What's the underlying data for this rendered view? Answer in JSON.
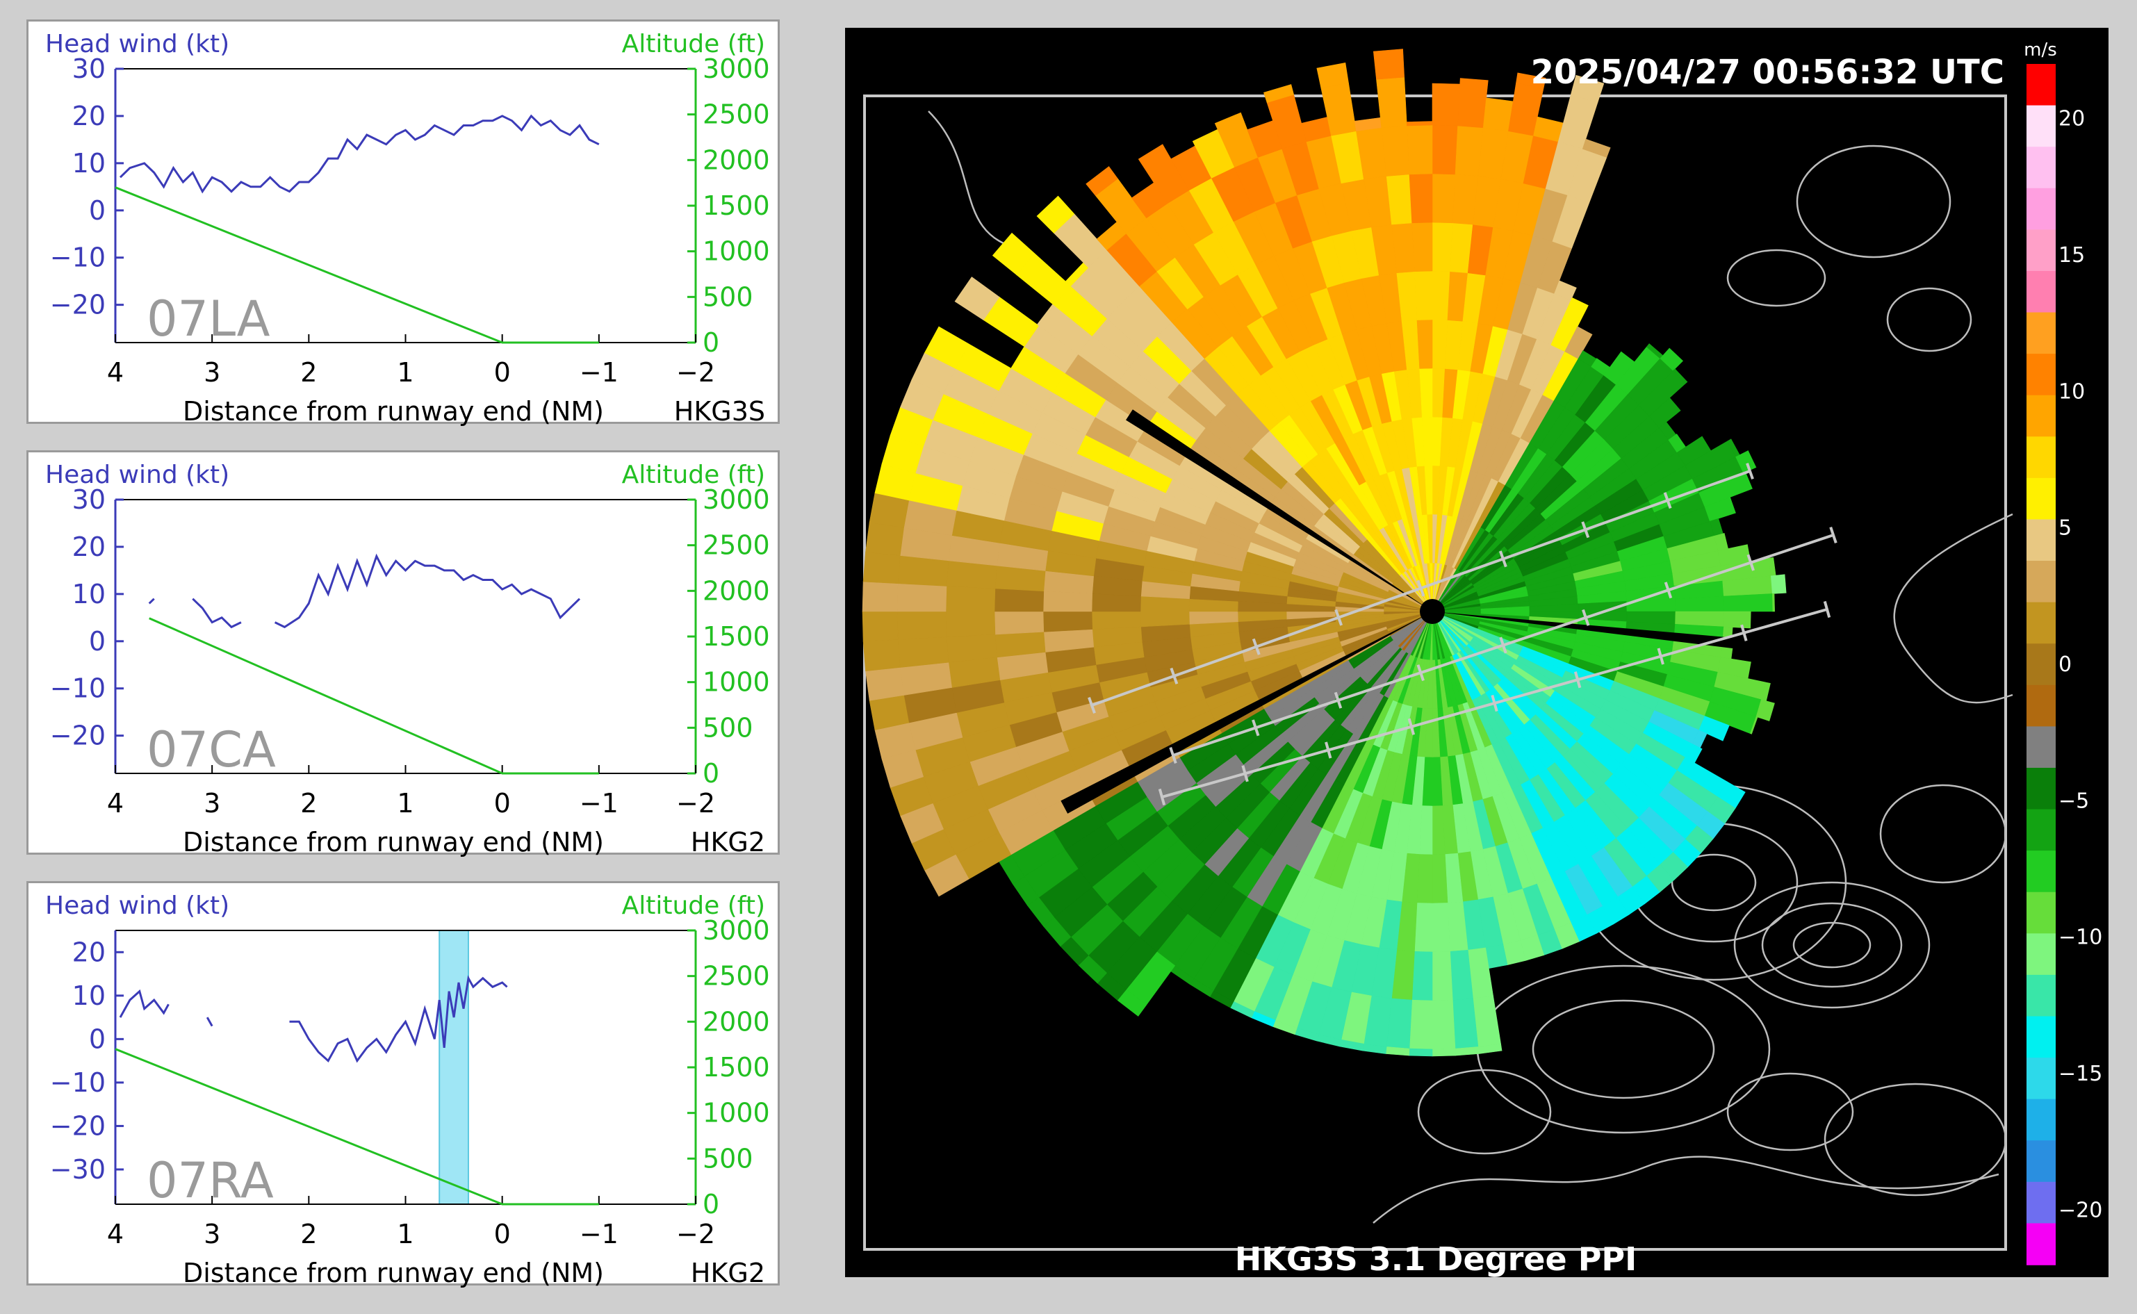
{
  "colors": {
    "headwind": "#3b3bb8",
    "altitude": "#22c022",
    "runway_label": "#9a9a9a",
    "wind_shear_highlight": "#9fe6f5"
  },
  "chart_data": [
    {
      "type": "line",
      "id": "07LA",
      "runway_label": "07LA",
      "radar": "HKG3S",
      "left_axis_label": "Head wind (kt)",
      "right_axis_label": "Altitude (ft)",
      "xlabel": "Distance from runway end (NM)",
      "xlim": [
        4,
        -2
      ],
      "ylim_left": [
        -28,
        30
      ],
      "ylim_right": [
        0,
        3000
      ],
      "xticks": [
        4,
        3,
        2,
        1,
        0,
        -1,
        -2
      ],
      "xtick_labels": [
        "4",
        "3",
        "2",
        "1",
        "0",
        "−1",
        "−2"
      ],
      "yticks_left": [
        30,
        20,
        10,
        0,
        -10,
        -20
      ],
      "ytick_labels_left": [
        "30",
        "20",
        "10",
        "0",
        "−10",
        "−20"
      ],
      "yticks_right": [
        3000,
        2500,
        2000,
        1500,
        1000,
        500,
        0
      ],
      "ytick_labels_right": [
        "3000",
        "2500",
        "2000",
        "1500",
        "1000",
        "500",
        "0"
      ],
      "series": [
        {
          "axis": "left",
          "segments": [
            [
              [
                3.95,
                7
              ],
              [
                3.85,
                9
              ],
              [
                3.7,
                10
              ],
              [
                3.6,
                8
              ],
              [
                3.5,
                5
              ],
              [
                3.4,
                9
              ],
              [
                3.3,
                6
              ],
              [
                3.2,
                8
              ],
              [
                3.1,
                4
              ],
              [
                3.0,
                7
              ],
              [
                2.9,
                6
              ],
              [
                2.8,
                4
              ],
              [
                2.7,
                6
              ],
              [
                2.6,
                5
              ],
              [
                2.5,
                5
              ],
              [
                2.4,
                7
              ],
              [
                2.3,
                5
              ],
              [
                2.2,
                4
              ],
              [
                2.1,
                6
              ],
              [
                2.0,
                6
              ],
              [
                1.9,
                8
              ],
              [
                1.8,
                11
              ],
              [
                1.7,
                11
              ],
              [
                1.6,
                15
              ],
              [
                1.5,
                13
              ],
              [
                1.4,
                16
              ],
              [
                1.3,
                15
              ],
              [
                1.2,
                14
              ],
              [
                1.1,
                16
              ],
              [
                1.0,
                17
              ],
              [
                0.9,
                15
              ],
              [
                0.8,
                16
              ],
              [
                0.7,
                18
              ],
              [
                0.6,
                17
              ],
              [
                0.5,
                16
              ],
              [
                0.4,
                18
              ],
              [
                0.3,
                18
              ],
              [
                0.2,
                19
              ],
              [
                0.1,
                19
              ],
              [
                0.0,
                20
              ],
              [
                -0.1,
                19
              ],
              [
                -0.2,
                17
              ],
              [
                -0.3,
                20
              ],
              [
                -0.4,
                18
              ],
              [
                -0.5,
                19
              ],
              [
                -0.6,
                17
              ],
              [
                -0.7,
                16
              ],
              [
                -0.8,
                18
              ],
              [
                -0.9,
                15
              ],
              [
                -1.0,
                14
              ]
            ]
          ]
        },
        {
          "axis": "right",
          "segments": [
            [
              [
                4.0,
                1700
              ],
              [
                0.0,
                0
              ],
              [
                -1.0,
                0
              ]
            ]
          ]
        }
      ]
    },
    {
      "type": "line",
      "id": "07CA",
      "runway_label": "07CA",
      "radar": "HKG2",
      "left_axis_label": "Head wind (kt)",
      "right_axis_label": "Altitude (ft)",
      "xlabel": "Distance from runway end (NM)",
      "xlim": [
        4,
        -2
      ],
      "ylim_left": [
        -28,
        30
      ],
      "ylim_right": [
        0,
        3000
      ],
      "xticks": [
        4,
        3,
        2,
        1,
        0,
        -1,
        -2
      ],
      "xtick_labels": [
        "4",
        "3",
        "2",
        "1",
        "0",
        "−1",
        "−2"
      ],
      "yticks_left": [
        30,
        20,
        10,
        0,
        -10,
        -20
      ],
      "ytick_labels_left": [
        "30",
        "20",
        "10",
        "0",
        "−10",
        "−20"
      ],
      "yticks_right": [
        3000,
        2500,
        2000,
        1500,
        1000,
        500,
        0
      ],
      "ytick_labels_right": [
        "3000",
        "2500",
        "2000",
        "1500",
        "1000",
        "500",
        "0"
      ],
      "series": [
        {
          "axis": "left",
          "segments": [
            [
              [
                3.65,
                8
              ],
              [
                3.6,
                9
              ]
            ],
            [
              [
                3.2,
                9
              ],
              [
                3.1,
                7
              ],
              [
                3.0,
                4
              ],
              [
                2.9,
                5
              ],
              [
                2.8,
                3
              ],
              [
                2.7,
                4
              ]
            ],
            [
              [
                2.35,
                4
              ],
              [
                2.25,
                3
              ],
              [
                2.1,
                5
              ],
              [
                2.0,
                8
              ],
              [
                1.9,
                14
              ],
              [
                1.8,
                10
              ],
              [
                1.7,
                16
              ],
              [
                1.6,
                11
              ],
              [
                1.5,
                17
              ],
              [
                1.4,
                12
              ],
              [
                1.3,
                18
              ],
              [
                1.2,
                14
              ],
              [
                1.1,
                17
              ],
              [
                1.0,
                15
              ],
              [
                0.9,
                17
              ],
              [
                0.8,
                16
              ],
              [
                0.7,
                16
              ],
              [
                0.6,
                15
              ],
              [
                0.5,
                15
              ],
              [
                0.4,
                13
              ],
              [
                0.3,
                14
              ],
              [
                0.2,
                13
              ],
              [
                0.1,
                13
              ],
              [
                0.0,
                11
              ],
              [
                -0.1,
                12
              ],
              [
                -0.2,
                10
              ],
              [
                -0.3,
                11
              ],
              [
                -0.4,
                10
              ],
              [
                -0.5,
                9
              ],
              [
                -0.6,
                5
              ],
              [
                -0.7,
                7
              ],
              [
                -0.8,
                9
              ]
            ]
          ]
        },
        {
          "axis": "right",
          "segments": [
            [
              [
                3.65,
                1700
              ],
              [
                0.0,
                0
              ],
              [
                -1.0,
                0
              ]
            ]
          ]
        }
      ]
    },
    {
      "type": "line",
      "id": "07RA",
      "runway_label": "07RA",
      "radar": "HKG2",
      "left_axis_label": "Head wind (kt)",
      "right_axis_label": "Altitude (ft)",
      "xlabel": "Distance from runway end (NM)",
      "xlim": [
        4,
        -2
      ],
      "ylim_left": [
        -38,
        25
      ],
      "ylim_right": [
        0,
        3000
      ],
      "xticks": [
        4,
        3,
        2,
        1,
        0,
        -1,
        -2
      ],
      "xtick_labels": [
        "4",
        "3",
        "2",
        "1",
        "0",
        "−1",
        "−2"
      ],
      "yticks_left": [
        20,
        10,
        0,
        -10,
        -20,
        -30
      ],
      "ytick_labels_left": [
        "20",
        "10",
        "0",
        "−10",
        "−20",
        "−30"
      ],
      "yticks_right": [
        3000,
        2500,
        2000,
        1500,
        1000,
        500,
        0
      ],
      "ytick_labels_right": [
        "3000",
        "2500",
        "2000",
        "1500",
        "1000",
        "500",
        "0"
      ],
      "highlight_x": [
        0.65,
        0.35
      ],
      "series": [
        {
          "axis": "left",
          "segments": [
            [
              [
                3.95,
                5
              ],
              [
                3.85,
                9
              ],
              [
                3.75,
                11
              ],
              [
                3.7,
                7
              ],
              [
                3.6,
                9
              ],
              [
                3.5,
                6
              ],
              [
                3.45,
                8
              ]
            ],
            [
              [
                3.05,
                5
              ],
              [
                3.0,
                3
              ]
            ],
            [
              [
                2.2,
                4
              ],
              [
                2.1,
                4
              ],
              [
                2.0,
                0
              ],
              [
                1.9,
                -3
              ],
              [
                1.8,
                -5
              ],
              [
                1.7,
                -1
              ],
              [
                1.6,
                0
              ],
              [
                1.5,
                -5
              ],
              [
                1.4,
                -2
              ],
              [
                1.3,
                0
              ],
              [
                1.2,
                -3
              ],
              [
                1.1,
                1
              ],
              [
                1.0,
                4
              ],
              [
                0.9,
                -1
              ],
              [
                0.8,
                7
              ],
              [
                0.7,
                0
              ],
              [
                0.65,
                9
              ],
              [
                0.6,
                -2
              ],
              [
                0.55,
                11
              ],
              [
                0.5,
                5
              ],
              [
                0.45,
                13
              ],
              [
                0.4,
                7
              ],
              [
                0.35,
                14
              ],
              [
                0.3,
                12
              ],
              [
                0.2,
                14
              ],
              [
                0.1,
                12
              ],
              [
                0.0,
                13
              ],
              [
                -0.05,
                12
              ]
            ]
          ]
        },
        {
          "axis": "right",
          "segments": [
            [
              [
                4.0,
                1700
              ],
              [
                0.0,
                0
              ],
              [
                -1.0,
                0
              ]
            ]
          ]
        }
      ]
    },
    {
      "type": "heatmap",
      "id": "ppi",
      "timestamp": "2025/04/27   00:56:32 UTC",
      "title": "HKG3S 3.1 Degree PPI",
      "colorbar_unit": "m/s",
      "colorbar_range": [
        -22,
        22
      ],
      "colorbar_ticks": [
        20,
        15,
        10,
        5,
        0,
        -5,
        -10,
        -15,
        -20
      ],
      "colorbar_tick_labels": [
        "20",
        "15",
        "10",
        "5",
        "0",
        "−5",
        "−10",
        "−15",
        "−20"
      ],
      "colorbar_colors": [
        "#f500f5",
        "#6e6ef0",
        "#2a8fe0",
        "#1eb0e8",
        "#2dd9ea",
        "#00f0f0",
        "#39e6a8",
        "#7ef57e",
        "#66dd3a",
        "#22cc22",
        "#13a313",
        "#0a7f0a",
        "#808080",
        "#b06a10",
        "#a8781a",
        "#c29520",
        "#d6a85a",
        "#e8c882",
        "#fff000",
        "#ffd700",
        "#ffa500",
        "#ff8200",
        "#ffa020",
        "#ff7fb0",
        "#ffa0c8",
        "#ff9fe0",
        "#ffc0f0",
        "#ffe0f8",
        "#ff0000"
      ]
    }
  ]
}
